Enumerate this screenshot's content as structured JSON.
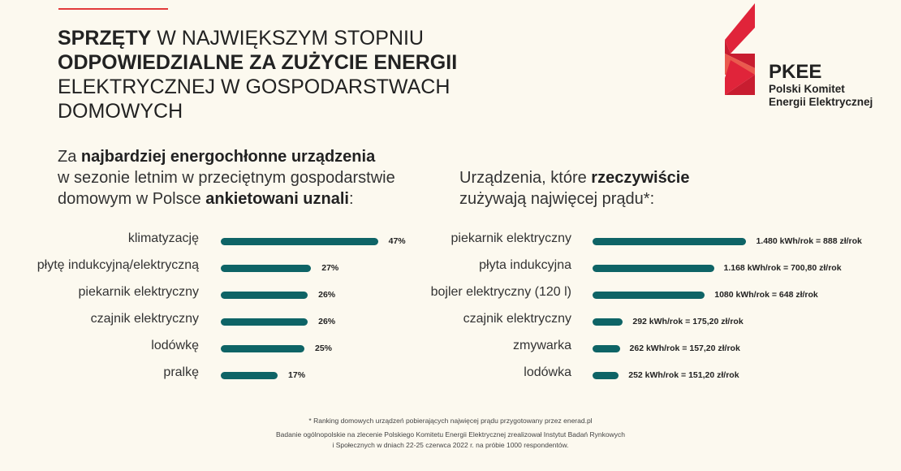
{
  "title": {
    "l1b": "SPRZĘTY",
    "l1": " W NAJWIĘKSZYM STOPNIU",
    "l2b": "ODPOWIEDZIALNE ZA ZUŻYCIE ENERGII",
    "l3": "ELEKTRYCZNEJ W GOSPODARSTWACH",
    "l4": "DOMOWYCH"
  },
  "logo": {
    "name": "PKEE",
    "line1": "Polski Komitet",
    "line2": "Energii Elektrycznej"
  },
  "left_sub": {
    "a": "Za ",
    "b": "najbardziej energochłonne urządzenia",
    "c": "w sezonie letnim w przeciętnym gospodarstwie",
    "d": "domowym w Polsce ",
    "e": "ankietowani uznali",
    ":": ":"
  },
  "right_sub": {
    "a": "Urządzenia, które ",
    "b": "rzeczywiście",
    "c": "zużywają najwięcej prądu*:"
  },
  "colors": {
    "bar": "#0e6466",
    "accent": "#e23a3a",
    "background": "#fcf9ef"
  },
  "chart_data": [
    {
      "type": "bar",
      "orientation": "horizontal",
      "categories": [
        "klimatyzację",
        "płytę indukcyjną/elektryczną",
        "piekarnik elektryczny",
        "czajnik elektryczny",
        "lodówkę",
        "pralkę"
      ],
      "values": [
        47,
        27,
        26,
        26,
        25,
        17
      ],
      "labels": [
        "47%",
        "27%",
        "26%",
        "26%",
        "25%",
        "17%"
      ],
      "unit": "%"
    },
    {
      "type": "bar",
      "orientation": "horizontal",
      "categories": [
        "piekarnik elektryczny",
        "płyta indukcyjna",
        "bojler elektryczny (120 l)",
        "czajnik elektryczny",
        "zmywarka",
        "lodówka"
      ],
      "values": [
        1480,
        1168,
        1080,
        292,
        262,
        252
      ],
      "labels": [
        "1.480 kWh/rok = 888 zł/rok",
        "1.168 kWh/rok = 700,80 zł/rok",
        "1080 kWh/rok = 648 zł/rok",
        "292 kWh/rok = 175,20 zł/rok",
        "262 kWh/rok = 157,20 zł/rok",
        "252 kWh/rok = 151,20 zł/rok"
      ],
      "unit": "kWh/rok"
    }
  ],
  "footnotes": [
    "* Ranking domowych urządzeń pobierających najwięcej prądu przygotowany przez enerad.pl",
    "Badanie ogólnopolskie na zlecenie Polskiego Komitetu Energii Elektrycznej zrealizował Instytut Badań Rynkowych",
    "i Społecznych w dniach 22-25 czerwca 2022 r. na próbie 1000 respondentów."
  ]
}
